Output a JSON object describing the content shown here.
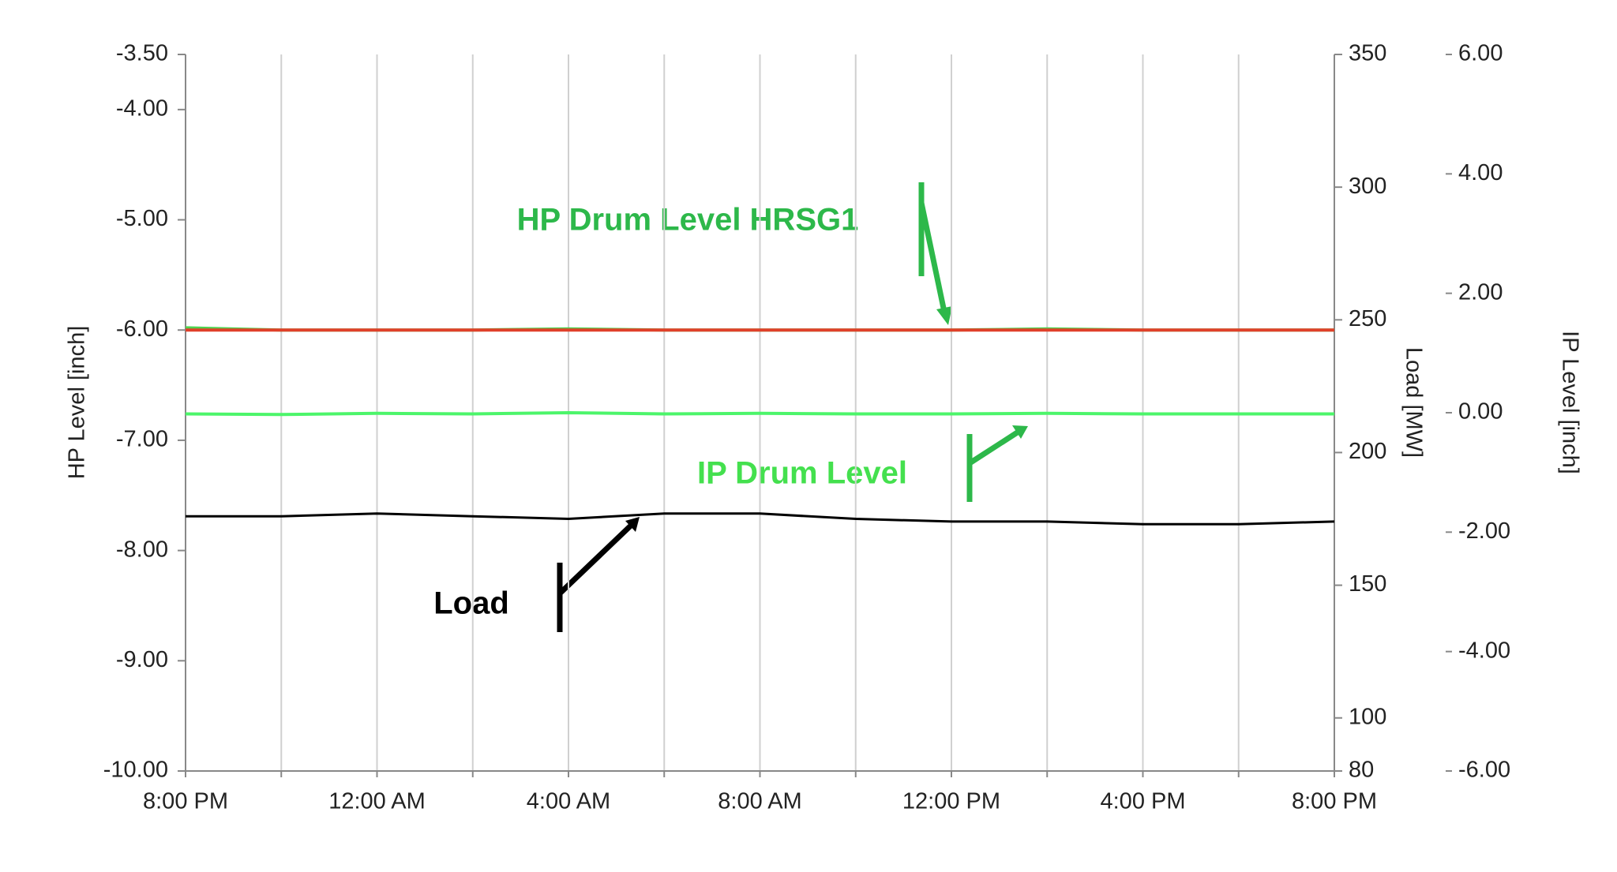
{
  "chart_data": {
    "type": "line",
    "x": [
      "8:00 PM",
      null,
      "12:00 AM",
      null,
      "4:00 AM",
      null,
      "8:00 AM",
      null,
      "12:00 PM",
      null,
      "4:00 PM",
      null,
      "8:00 PM"
    ],
    "y_label": "HP Level [inch]",
    "y2_label": "Load [MW]",
    "y3_label": "IP Level [inch]",
    "ylim": [
      -10,
      -3.5
    ],
    "yticks": [
      {
        "value": -3.5,
        "label": "-3.50"
      },
      {
        "value": -4,
        "label": "-4.00"
      },
      {
        "value": -5,
        "label": "-5.00"
      },
      {
        "value": -6,
        "label": "-6.00"
      },
      {
        "value": -7,
        "label": "-7.00"
      },
      {
        "value": -8,
        "label": "-8.00"
      },
      {
        "value": -9,
        "label": "-9.00"
      },
      {
        "value": -10,
        "label": "-10.00"
      }
    ],
    "y2lim": [
      80,
      350
    ],
    "y2ticks": [
      80,
      100,
      150,
      200,
      250,
      300,
      350
    ],
    "y3lim": [
      -6,
      6
    ],
    "y3ticks": [
      {
        "value": -6,
        "label": "-6.00"
      },
      {
        "value": -4,
        "label": "-4.00"
      },
      {
        "value": -2,
        "label": "-2.00"
      },
      {
        "value": 0,
        "label": "0.00"
      },
      {
        "value": 2,
        "label": "2.00"
      },
      {
        "value": 4,
        "label": "4.00"
      },
      {
        "value": 6,
        "label": "6.00"
      }
    ],
    "grid": true,
    "series": [
      {
        "name": "HP Drum Level HRSG1",
        "color": "#4fd24f",
        "axis": "y",
        "values": [
          -5.98,
          -6.0,
          -6.0,
          -6.0,
          -5.99,
          -6.0,
          -6.0,
          -6.0,
          -6.0,
          -5.99,
          -6.0,
          -6.0,
          -6.0
        ]
      },
      {
        "color": "#e0402a",
        "axis": "y",
        "values": [
          -6.0,
          -6.0,
          -6.0,
          -6.0,
          -6.0,
          -6.0,
          -6.0,
          -6.0,
          -6.0,
          -6.0,
          -6.0,
          -6.0,
          -6.0
        ]
      },
      {
        "name": "IP Drum Level",
        "color": "#4cf56a",
        "axis": "y3",
        "values": [
          -0.02,
          -0.03,
          -0.01,
          -0.02,
          0.0,
          -0.02,
          -0.01,
          -0.02,
          -0.02,
          -0.01,
          -0.02,
          -0.02,
          -0.02
        ]
      },
      {
        "name": "Load",
        "color": "#000000",
        "axis": "y2",
        "values": [
          176,
          176,
          177,
          176,
          175,
          177,
          177,
          175,
          174,
          174,
          173,
          173,
          174
        ]
      }
    ]
  }
}
